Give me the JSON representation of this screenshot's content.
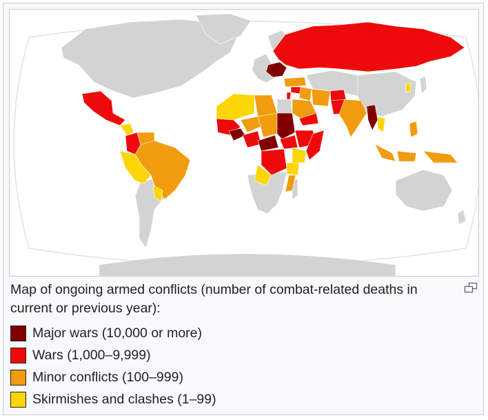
{
  "caption": {
    "text": "Map of ongoing armed conflicts (number of combat-related deaths in current or previous year):",
    "enlarge_icon": "magnify-clip-icon"
  },
  "legend": [
    {
      "label": "Major wars (10,000 or more)",
      "color": "#800000"
    },
    {
      "label": "Wars (1,000–9,999)",
      "color": "#ee0a0a"
    },
    {
      "label": "Minor conflicts (100–999)",
      "color": "#f19b0e"
    },
    {
      "label": "Skirmishes and clashes (1–99)",
      "color": "#fdd60a"
    }
  ],
  "map": {
    "ocean_color": "#ffffff",
    "land_color": "#d3d3d3",
    "regions": [
      {
        "name": "Ukraine",
        "level": "major"
      },
      {
        "name": "Sudan",
        "level": "major"
      },
      {
        "name": "Myanmar",
        "level": "major"
      },
      {
        "name": "Burkina Faso",
        "level": "major"
      },
      {
        "name": "Russia",
        "level": "war"
      },
      {
        "name": "Mexico",
        "level": "war"
      },
      {
        "name": "Colombia",
        "level": "war"
      },
      {
        "name": "Mali",
        "level": "war"
      },
      {
        "name": "Nigeria",
        "level": "war"
      },
      {
        "name": "DR Congo",
        "level": "war"
      },
      {
        "name": "Somalia",
        "level": "war"
      },
      {
        "name": "Ethiopia",
        "level": "war"
      },
      {
        "name": "Israel",
        "level": "war"
      },
      {
        "name": "Syria",
        "level": "war"
      },
      {
        "name": "Yemen",
        "level": "war"
      },
      {
        "name": "Pakistan",
        "level": "war"
      },
      {
        "name": "Brazil",
        "level": "minor"
      },
      {
        "name": "Venezuela",
        "level": "minor"
      },
      {
        "name": "India",
        "level": "minor"
      },
      {
        "name": "Libya",
        "level": "minor"
      },
      {
        "name": "Chad",
        "level": "minor"
      },
      {
        "name": "Niger",
        "level": "minor"
      },
      {
        "name": "Iraq",
        "level": "minor"
      },
      {
        "name": "Iran",
        "level": "minor"
      },
      {
        "name": "Indonesia",
        "level": "minor"
      },
      {
        "name": "Philippines",
        "level": "minor"
      },
      {
        "name": "Mozambique",
        "level": "minor"
      },
      {
        "name": "Algeria",
        "level": "skirmish"
      },
      {
        "name": "Peru",
        "level": "skirmish"
      },
      {
        "name": "Bolivia",
        "level": "skirmish"
      },
      {
        "name": "Angola",
        "level": "skirmish"
      },
      {
        "name": "Tanzania",
        "level": "skirmish"
      },
      {
        "name": "Thailand",
        "level": "skirmish"
      },
      {
        "name": "South Korea",
        "level": "skirmish"
      }
    ]
  }
}
